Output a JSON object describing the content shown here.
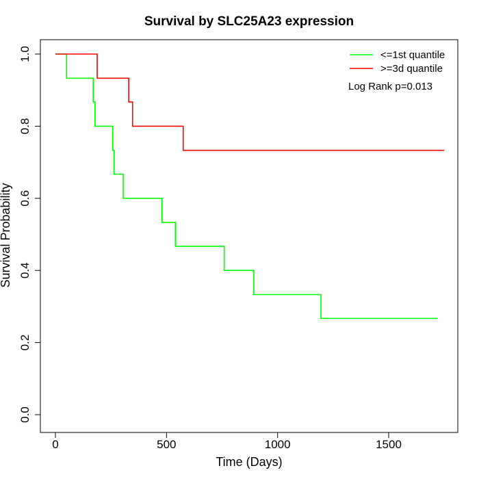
{
  "chart_data": {
    "type": "line",
    "title": "Survival by SLC25A23 expression",
    "xlabel": "Time (Days)",
    "ylabel": "Survival Probability",
    "xlim": [
      0,
      1800
    ],
    "ylim": [
      0,
      1
    ],
    "x_ticks": [
      0,
      500,
      1000,
      1500
    ],
    "x_tick_labels": [
      "0",
      "500",
      "1000",
      "1500"
    ],
    "y_ticks": [
      0,
      0.2,
      0.4,
      0.6,
      0.8,
      1.0
    ],
    "y_tick_labels": [
      "0.0",
      "0.2",
      "0.4",
      "0.6",
      "0.8",
      "1.0"
    ],
    "grid": false,
    "legend_position": "top-right",
    "annotation": "Log Rank p=0.013",
    "series": [
      {
        "name": "<=1st quantile",
        "color": "#00ff00",
        "step_points": [
          [
            0,
            1.0
          ],
          [
            50,
            1.0
          ],
          [
            50,
            0.933
          ],
          [
            170,
            0.933
          ],
          [
            170,
            0.867
          ],
          [
            178,
            0.867
          ],
          [
            178,
            0.8
          ],
          [
            258,
            0.8
          ],
          [
            258,
            0.733
          ],
          [
            264,
            0.733
          ],
          [
            264,
            0.667
          ],
          [
            305,
            0.667
          ],
          [
            305,
            0.6
          ],
          [
            480,
            0.6
          ],
          [
            480,
            0.533
          ],
          [
            540,
            0.533
          ],
          [
            540,
            0.467
          ],
          [
            760,
            0.467
          ],
          [
            760,
            0.4
          ],
          [
            893,
            0.4
          ],
          [
            893,
            0.333
          ],
          [
            1195,
            0.333
          ],
          [
            1195,
            0.267
          ],
          [
            1720,
            0.267
          ]
        ]
      },
      {
        "name": ">=3d quantile",
        "color": "#ff0000",
        "step_points": [
          [
            0,
            1.0
          ],
          [
            188,
            1.0
          ],
          [
            188,
            0.933
          ],
          [
            330,
            0.933
          ],
          [
            330,
            0.867
          ],
          [
            347,
            0.867
          ],
          [
            347,
            0.8
          ],
          [
            575,
            0.8
          ],
          [
            575,
            0.733
          ],
          [
            1750,
            0.733
          ]
        ]
      }
    ]
  }
}
